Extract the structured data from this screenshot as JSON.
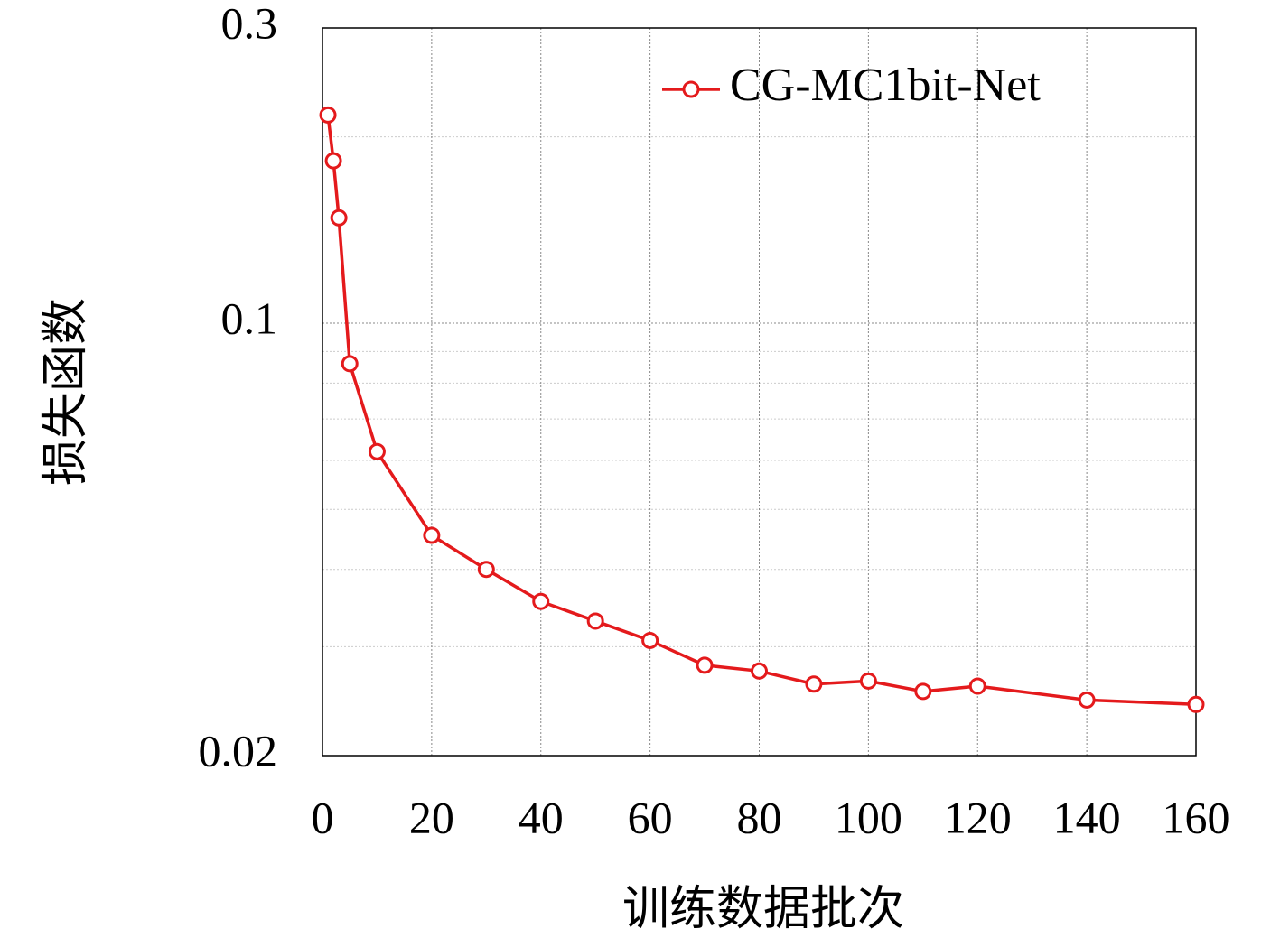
{
  "chart_data": {
    "type": "line",
    "xlabel": "训练数据批次",
    "ylabel": "损失函数",
    "x": [
      1,
      2,
      3,
      5,
      10,
      20,
      30,
      40,
      50,
      60,
      70,
      80,
      90,
      100,
      110,
      120,
      140,
      160
    ],
    "series": [
      {
        "name": "CG-MC1bit-Net",
        "color": "#e41a1c",
        "values": [
          0.217,
          0.183,
          0.148,
          0.086,
          0.062,
          0.0454,
          0.04,
          0.0355,
          0.033,
          0.0307,
          0.028,
          0.0274,
          0.0261,
          0.0264,
          0.0254,
          0.0259,
          0.0246,
          0.0242
        ]
      }
    ],
    "xlim": [
      0,
      160
    ],
    "xticks": [
      0,
      20,
      40,
      60,
      80,
      100,
      120,
      140,
      160
    ],
    "ylim": [
      0.02,
      0.3
    ],
    "yticks": [
      0.02,
      0.1,
      0.3
    ],
    "yminor": [
      0.03,
      0.04,
      0.05,
      0.06,
      0.07,
      0.08,
      0.09,
      0.2
    ],
    "ylog": true,
    "grid": true,
    "legend": "upper right"
  }
}
